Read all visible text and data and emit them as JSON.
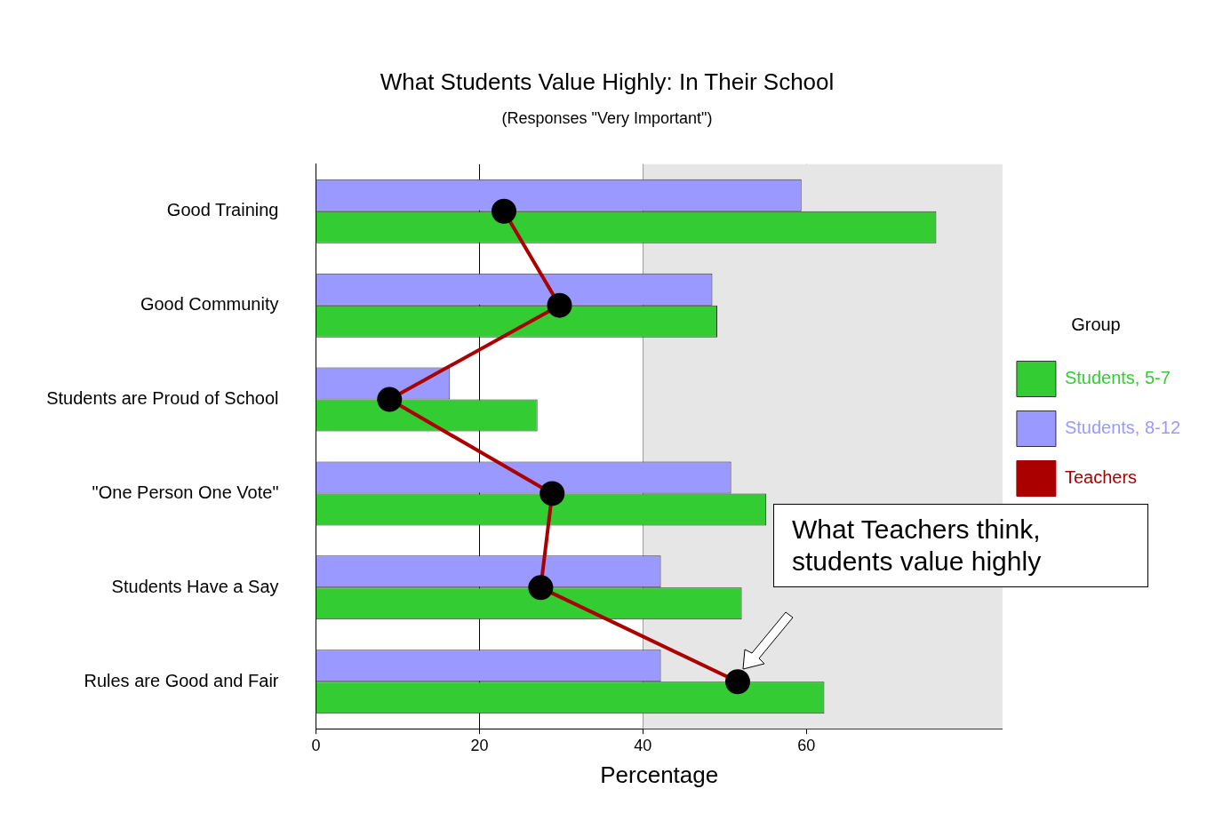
{
  "chart_data": {
    "type": "bar",
    "orientation": "horizontal",
    "title": "What Students Value Highly: In Their School",
    "subtitle": "(Responses \"Very Important\")",
    "xlabel": "Percentage",
    "legend_title": "Group",
    "categories": [
      "Good Training",
      "Good Community",
      "Students are Proud of School",
      "\"One Person One Vote\"",
      "Students Have a Say",
      "Rules are Good and Fair"
    ],
    "series": [
      {
        "name": "Students, 5-7",
        "color": "#33cc33",
        "values": [
          75.9,
          49.1,
          27.1,
          55.1,
          52.1,
          62.2
        ]
      },
      {
        "name": "Students, 8-12",
        "color": "#9999ff",
        "values": [
          59.4,
          48.5,
          16.4,
          50.8,
          42.2,
          42.2
        ]
      },
      {
        "name": "Teachers",
        "type": "line",
        "color": "#aa0000",
        "marker": "circle",
        "values": [
          23.0,
          29.8,
          9.0,
          28.9,
          27.5,
          51.6
        ]
      }
    ],
    "xlim": [
      0,
      84
    ],
    "xticks": [
      0,
      20,
      40,
      60
    ],
    "grid": "x",
    "legend": "right",
    "bands": [
      {
        "axis": "x",
        "from": 40,
        "to": 84,
        "color": "#e6e6e6"
      }
    ],
    "annotations": [
      "What Teachers think, students value highly"
    ]
  }
}
